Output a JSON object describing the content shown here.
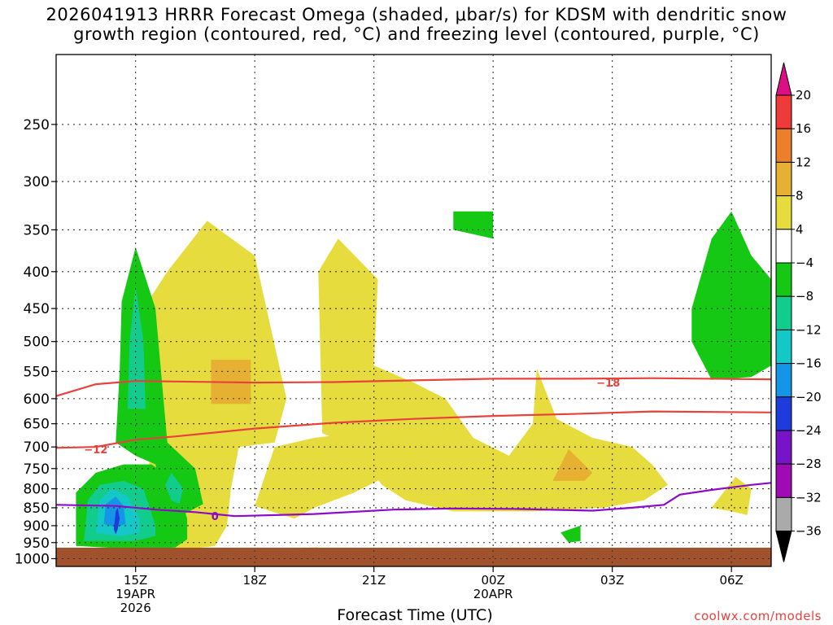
{
  "chart_data": {
    "type": "heatmap",
    "title_line1": "2026041913 HRRR Forecast Omega (shaded, μbar/s) for KDSM with dendritic snow",
    "title_line2": "growth region (contoured, red, °C) and freezing level (contoured, purple, °C)",
    "xlabel": "Forecast Time (UTC)",
    "credit": "coolwx.com/models",
    "y_axis": {
      "scale": "log-pressure",
      "ticks": [
        250,
        300,
        350,
        400,
        450,
        500,
        550,
        600,
        650,
        700,
        750,
        800,
        850,
        900,
        950,
        1000
      ],
      "ylim": [
        200,
        1025
      ]
    },
    "x_axis": {
      "xlim_hours_from_15Z_19APR": [
        -2,
        16
      ],
      "ticks": [
        {
          "h": 0,
          "lines": [
            "15Z",
            "19APR",
            "2026"
          ]
        },
        {
          "h": 3,
          "lines": [
            "18Z"
          ]
        },
        {
          "h": 6,
          "lines": [
            "21Z"
          ]
        },
        {
          "h": 9,
          "lines": [
            "00Z",
            "20APR"
          ]
        },
        {
          "h": 12,
          "lines": [
            "03Z"
          ]
        },
        {
          "h": 15,
          "lines": [
            "06Z"
          ]
        }
      ]
    },
    "grid": true,
    "colorbar": {
      "levels": [
        "20",
        "16",
        "12",
        "8",
        "4",
        "−4",
        "−8",
        "−12",
        "−16",
        "−20",
        "−24",
        "−28",
        "−32",
        "−36"
      ],
      "top_color": "#dc0f84",
      "bottom_color": "#000000",
      "colors": [
        "#ee3b3a",
        "#ec7f2b",
        "#e6b033",
        "#e7dc3d",
        "#ffffff",
        "#14c814",
        "#12cc8e",
        "#14c8c8",
        "#1496e6",
        "#1e3cdc",
        "#7814c8",
        "#a00ab4",
        "#aaaaaa"
      ]
    },
    "omega_regions": [
      {
        "value": 6,
        "color": "#e7dc3d",
        "points": [
          [
            -0.3,
            970
          ],
          [
            0.6,
            955
          ],
          [
            0.4,
            800
          ],
          [
            0.2,
            600
          ],
          [
            0.2,
            450
          ],
          [
            0.8,
            400
          ],
          [
            1.8,
            340
          ],
          [
            3.0,
            380
          ],
          [
            3.8,
            600
          ],
          [
            3.5,
            690
          ],
          [
            2.6,
            700
          ],
          [
            2.4,
            800
          ],
          [
            2.3,
            900
          ],
          [
            2.0,
            960
          ],
          [
            1.0,
            975
          ]
        ]
      },
      {
        "value": 6,
        "color": "#e7dc3d",
        "points": [
          [
            3.0,
            845
          ],
          [
            3.5,
            700
          ],
          [
            4.5,
            680
          ],
          [
            5.5,
            670
          ],
          [
            6.5,
            700
          ],
          [
            6.5,
            760
          ],
          [
            5.5,
            810
          ],
          [
            4.5,
            850
          ],
          [
            4.0,
            880
          ]
        ]
      },
      {
        "value": 6,
        "color": "#e7dc3d",
        "points": [
          [
            4.7,
            670
          ],
          [
            4.6,
            400
          ],
          [
            5.1,
            360
          ],
          [
            6.1,
            410
          ],
          [
            6.0,
            540
          ],
          [
            7.0,
            570
          ],
          [
            7.8,
            600
          ],
          [
            8.5,
            680
          ],
          [
            9.4,
            720
          ],
          [
            10.0,
            650
          ],
          [
            10.1,
            545
          ],
          [
            10.6,
            640
          ],
          [
            11.5,
            680
          ],
          [
            12.5,
            700
          ],
          [
            13.0,
            740
          ],
          [
            13.4,
            790
          ],
          [
            12.8,
            830
          ],
          [
            11.8,
            850
          ],
          [
            10.0,
            860
          ],
          [
            8.0,
            860
          ],
          [
            6.8,
            830
          ],
          [
            6.2,
            790
          ],
          [
            5.5,
            700
          ]
        ]
      },
      {
        "value": 6,
        "color": "#e7dc3d",
        "points": [
          [
            14.5,
            850
          ],
          [
            15.1,
            770
          ],
          [
            15.5,
            800
          ],
          [
            15.4,
            870
          ],
          [
            15.0,
            860
          ]
        ]
      },
      {
        "value": 10,
        "color": "#e6b033",
        "points": [
          [
            1.9,
            610
          ],
          [
            1.9,
            530
          ],
          [
            2.9,
            530
          ],
          [
            2.9,
            610
          ]
        ]
      },
      {
        "value": 10,
        "color": "#e6b033",
        "points": [
          [
            10.5,
            780
          ],
          [
            10.9,
            705
          ],
          [
            11.5,
            760
          ],
          [
            11.3,
            780
          ]
        ]
      },
      {
        "value": -6,
        "color": "#14c814",
        "points": [
          [
            -1.5,
            960
          ],
          [
            -1.5,
            810
          ],
          [
            -1.0,
            760
          ],
          [
            -0.3,
            740
          ],
          [
            0.4,
            740
          ],
          [
            1.0,
            780
          ],
          [
            1.3,
            880
          ],
          [
            1.3,
            940
          ],
          [
            1.0,
            965
          ],
          [
            0.0,
            970
          ]
        ]
      },
      {
        "value": -6,
        "color": "#14c814",
        "points": [
          [
            -0.5,
            690
          ],
          [
            -0.4,
            550
          ],
          [
            -0.35,
            440
          ],
          [
            0.0,
            370
          ],
          [
            0.5,
            450
          ],
          [
            0.7,
            600
          ],
          [
            0.8,
            690
          ],
          [
            1.5,
            750
          ],
          [
            1.7,
            840
          ],
          [
            1.0,
            880
          ],
          [
            0.8,
            860
          ],
          [
            0.5,
            740
          ],
          [
            0.0,
            720
          ]
        ]
      },
      {
        "value": -6,
        "color": "#14c814",
        "points": [
          [
            -1.0,
            970
          ],
          [
            4.6,
            965
          ],
          [
            4.6,
            968
          ],
          [
            -1.0,
            975
          ]
        ]
      },
      {
        "value": -6,
        "color": "#14c814",
        "points": [
          [
            8.0,
            330
          ],
          [
            9.0,
            330
          ],
          [
            9.0,
            360
          ],
          [
            8.0,
            350
          ]
        ]
      },
      {
        "value": -6,
        "color": "#14c814",
        "points": [
          [
            10.7,
            920
          ],
          [
            11.2,
            900
          ],
          [
            11.2,
            945
          ],
          [
            10.9,
            950
          ]
        ]
      },
      {
        "value": -6,
        "color": "#14c814",
        "points": [
          [
            14.0,
            450
          ],
          [
            14.5,
            360
          ],
          [
            15.0,
            330
          ],
          [
            15.5,
            380
          ],
          [
            16.0,
            410
          ],
          [
            16.0,
            540
          ],
          [
            15.5,
            560
          ],
          [
            14.5,
            565
          ],
          [
            14.0,
            500
          ]
        ]
      },
      {
        "value": -10,
        "color": "#12cc8e",
        "points": [
          [
            -1.3,
            945
          ],
          [
            -1.2,
            830
          ],
          [
            -0.9,
            790
          ],
          [
            -0.3,
            780
          ],
          [
            0.2,
            800
          ],
          [
            0.5,
            900
          ],
          [
            0.5,
            930
          ],
          [
            0.0,
            945
          ]
        ]
      },
      {
        "value": -10,
        "color": "#12cc8e",
        "points": [
          [
            -0.2,
            620
          ],
          [
            -0.15,
            500
          ],
          [
            0.0,
            420
          ],
          [
            0.2,
            500
          ],
          [
            0.25,
            620
          ]
        ]
      },
      {
        "value": -10,
        "color": "#12cc8e",
        "points": [
          [
            0.75,
            790
          ],
          [
            0.9,
            760
          ],
          [
            1.2,
            800
          ],
          [
            1.1,
            840
          ],
          [
            0.9,
            830
          ]
        ]
      },
      {
        "value": -14,
        "color": "#14c8c8",
        "points": [
          [
            -1.0,
            920
          ],
          [
            -0.9,
            830
          ],
          [
            -0.6,
            800
          ],
          [
            -0.2,
            820
          ],
          [
            0.1,
            880
          ],
          [
            0.1,
            920
          ],
          [
            -0.4,
            930
          ]
        ]
      },
      {
        "value": -18,
        "color": "#1496e6",
        "points": [
          [
            -0.8,
            895
          ],
          [
            -0.75,
            840
          ],
          [
            -0.5,
            820
          ],
          [
            -0.3,
            845
          ],
          [
            -0.25,
            895
          ],
          [
            -0.5,
            905
          ]
        ]
      },
      {
        "value": -22,
        "color": "#1e3cdc",
        "points": [
          [
            -0.55,
            910
          ],
          [
            -0.5,
            860
          ],
          [
            -0.45,
            850
          ],
          [
            -0.4,
            880
          ],
          [
            -0.45,
            910
          ],
          [
            -0.5,
            925
          ]
        ]
      }
    ],
    "contours": [
      {
        "level": "-18",
        "label": "−18",
        "color": "#e8423c",
        "label_at": [
          11.9,
          570
        ],
        "points": [
          [
            -2,
            595
          ],
          [
            -1.0,
            573
          ],
          [
            0,
            567
          ],
          [
            1,
            568
          ],
          [
            3,
            570
          ],
          [
            5,
            569
          ],
          [
            7,
            566
          ],
          [
            9,
            563
          ],
          [
            11,
            563
          ],
          [
            13,
            562
          ],
          [
            16,
            564
          ]
        ]
      },
      {
        "level": "-12",
        "label": "−12",
        "color": "#e8423c",
        "label_at": [
          -1.0,
          705
        ],
        "points": [
          [
            -2,
            702
          ],
          [
            -1,
            700
          ],
          [
            0,
            684
          ],
          [
            1,
            677
          ],
          [
            3,
            660
          ],
          [
            5,
            648
          ],
          [
            7,
            640
          ],
          [
            9,
            634
          ],
          [
            11,
            630
          ],
          [
            13,
            625
          ],
          [
            16,
            627
          ]
        ]
      },
      {
        "level": "0",
        "label": "0",
        "color": "#8c0ac8",
        "label_at": [
          2.0,
          873
        ],
        "points": [
          [
            -2,
            842
          ],
          [
            -0.5,
            845
          ],
          [
            0.5,
            855
          ],
          [
            1.5,
            862
          ],
          [
            2.5,
            873
          ],
          [
            4.5,
            867
          ],
          [
            6.5,
            855
          ],
          [
            8,
            852
          ],
          [
            9.5,
            853
          ],
          [
            11.5,
            858
          ],
          [
            12.5,
            850
          ],
          [
            13.3,
            842
          ],
          [
            13.7,
            815
          ],
          [
            14.5,
            803
          ],
          [
            15.5,
            790
          ],
          [
            16,
            785
          ]
        ]
      }
    ]
  }
}
